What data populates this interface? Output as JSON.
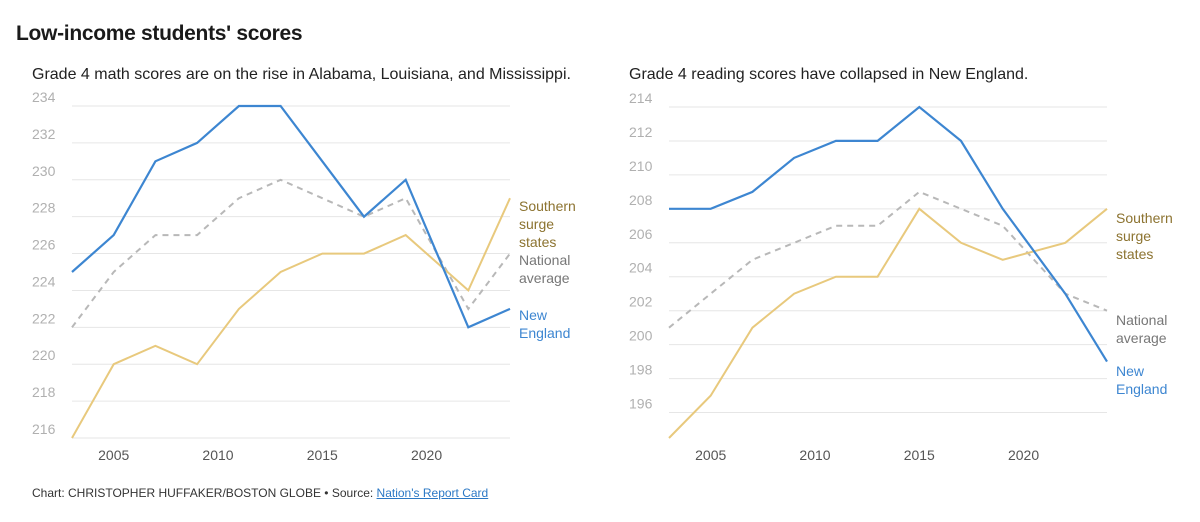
{
  "header": {
    "title": "Low-income students' scores"
  },
  "footer": {
    "credit": "Chart: CHRISTOPHER HUFFAKER/BOSTON GLOBE",
    "separator": "•",
    "source_prefix": "Source:",
    "source_link": "Nation's Report Card"
  },
  "colors": {
    "new_england": "#3d86d1",
    "southern": "#e8c97d",
    "southern_label": "#8c7330",
    "national": "#b8b8b8",
    "national_label": "#777777",
    "grid": "#e6e6e6"
  },
  "chart_data": [
    {
      "type": "line",
      "title": "Grade 4 math scores are on the rise in Alabama, Louisiana, and Mississippi.",
      "xlim": [
        2003,
        2024
      ],
      "ylim": [
        216,
        234
      ],
      "yticks": [
        216,
        218,
        220,
        222,
        224,
        226,
        228,
        230,
        232,
        234
      ],
      "xticks": [
        2005,
        2010,
        2015,
        2020
      ],
      "x": [
        2003,
        2005,
        2007,
        2009,
        2011,
        2013,
        2015,
        2017,
        2019,
        2022,
        2024
      ],
      "series": [
        {
          "key": "national",
          "name_lines": [
            "National",
            "average"
          ],
          "dashed": true,
          "values": [
            222,
            225,
            227,
            227,
            229,
            230,
            229,
            228,
            229,
            223,
            226
          ]
        },
        {
          "key": "southern",
          "name_lines": [
            "Southern",
            "surge",
            "states"
          ],
          "dashed": false,
          "values": [
            216,
            220,
            221,
            220,
            223,
            225,
            226,
            226,
            227,
            224,
            229
          ]
        },
        {
          "key": "new_england",
          "name_lines": [
            "New",
            "England"
          ],
          "dashed": false,
          "values": [
            225,
            227,
            231,
            232,
            234,
            234,
            231,
            228,
            230,
            222,
            223
          ]
        }
      ]
    },
    {
      "type": "line",
      "title": "Grade 4 reading scores have collapsed in New England.",
      "xlim": [
        2003,
        2024
      ],
      "ylim": [
        194.5,
        214
      ],
      "yticks": [
        196,
        198,
        200,
        202,
        204,
        206,
        208,
        210,
        212,
        214
      ],
      "xticks": [
        2005,
        2010,
        2015,
        2020
      ],
      "x": [
        2003,
        2005,
        2007,
        2009,
        2011,
        2013,
        2015,
        2017,
        2019,
        2022,
        2024
      ],
      "series": [
        {
          "key": "national",
          "name_lines": [
            "National",
            "average"
          ],
          "dashed": true,
          "values": [
            201,
            203,
            205,
            206,
            207,
            207,
            209,
            208,
            207,
            203,
            202
          ]
        },
        {
          "key": "southern",
          "name_lines": [
            "Southern",
            "surge",
            "states"
          ],
          "dashed": false,
          "values": [
            194.5,
            197,
            201,
            203,
            204,
            204,
            208,
            206,
            205,
            206,
            208
          ]
        },
        {
          "key": "new_england",
          "name_lines": [
            "New",
            "England"
          ],
          "dashed": false,
          "values": [
            208,
            208,
            209,
            211,
            212,
            212,
            214,
            212,
            208,
            203,
            199
          ]
        }
      ]
    }
  ]
}
